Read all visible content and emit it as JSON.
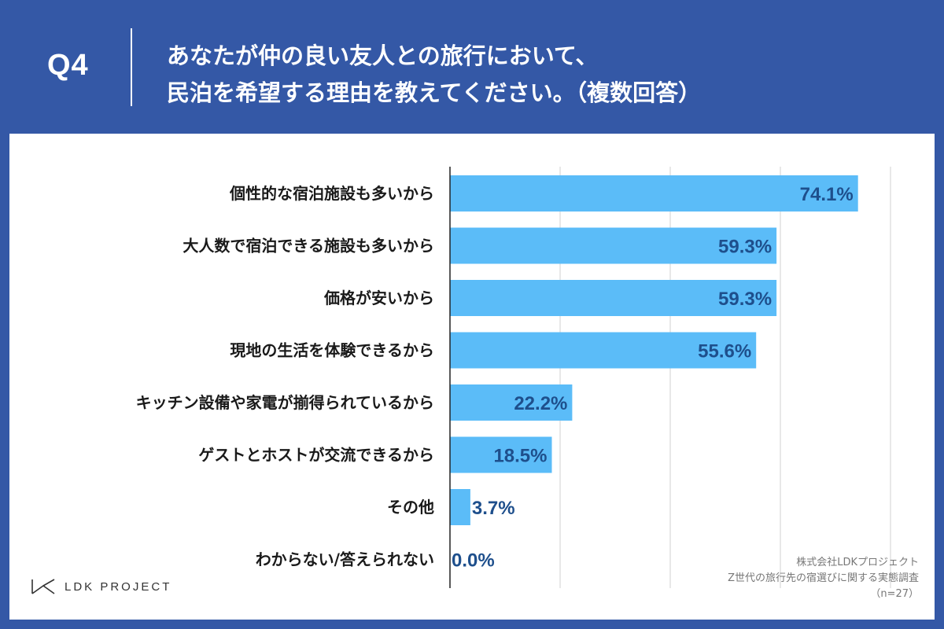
{
  "header": {
    "q_label": "Q4",
    "title_line1": "あなたが仲の良い友人との旅行において、",
    "title_line2": "民泊を希望する理由を教えてください。（複数回答）"
  },
  "colors": {
    "background": "#3458a6",
    "bar": "#5bbcf8",
    "value_text": "#1e4f8c"
  },
  "chart_data": {
    "type": "bar",
    "orientation": "horizontal",
    "categories": [
      "個性的な宿泊施設も多いから",
      "大人数で宿泊できる施設も多いから",
      "価格が安いから",
      "現地の生活を体験できるから",
      "キッチン設備や家電が揃得られているから",
      "ゲストとホストが交流できるから",
      "その他",
      "わからない/答えられない"
    ],
    "values": [
      74.1,
      59.3,
      59.3,
      55.6,
      22.2,
      18.5,
      3.7,
      0.0
    ],
    "value_labels": [
      "74.1%",
      "59.3%",
      "59.3%",
      "55.6%",
      "22.2%",
      "18.5%",
      "3.7%",
      "0.0%"
    ],
    "xlim": [
      0,
      80
    ],
    "grid": true
  },
  "footer": {
    "logo_text": "LDK PROJECT",
    "source_line1": "株式会社LDKプロジェクト",
    "source_line2": "Z世代の旅行先の宿選びに関する実態調査",
    "source_line3": "（n=27）"
  }
}
